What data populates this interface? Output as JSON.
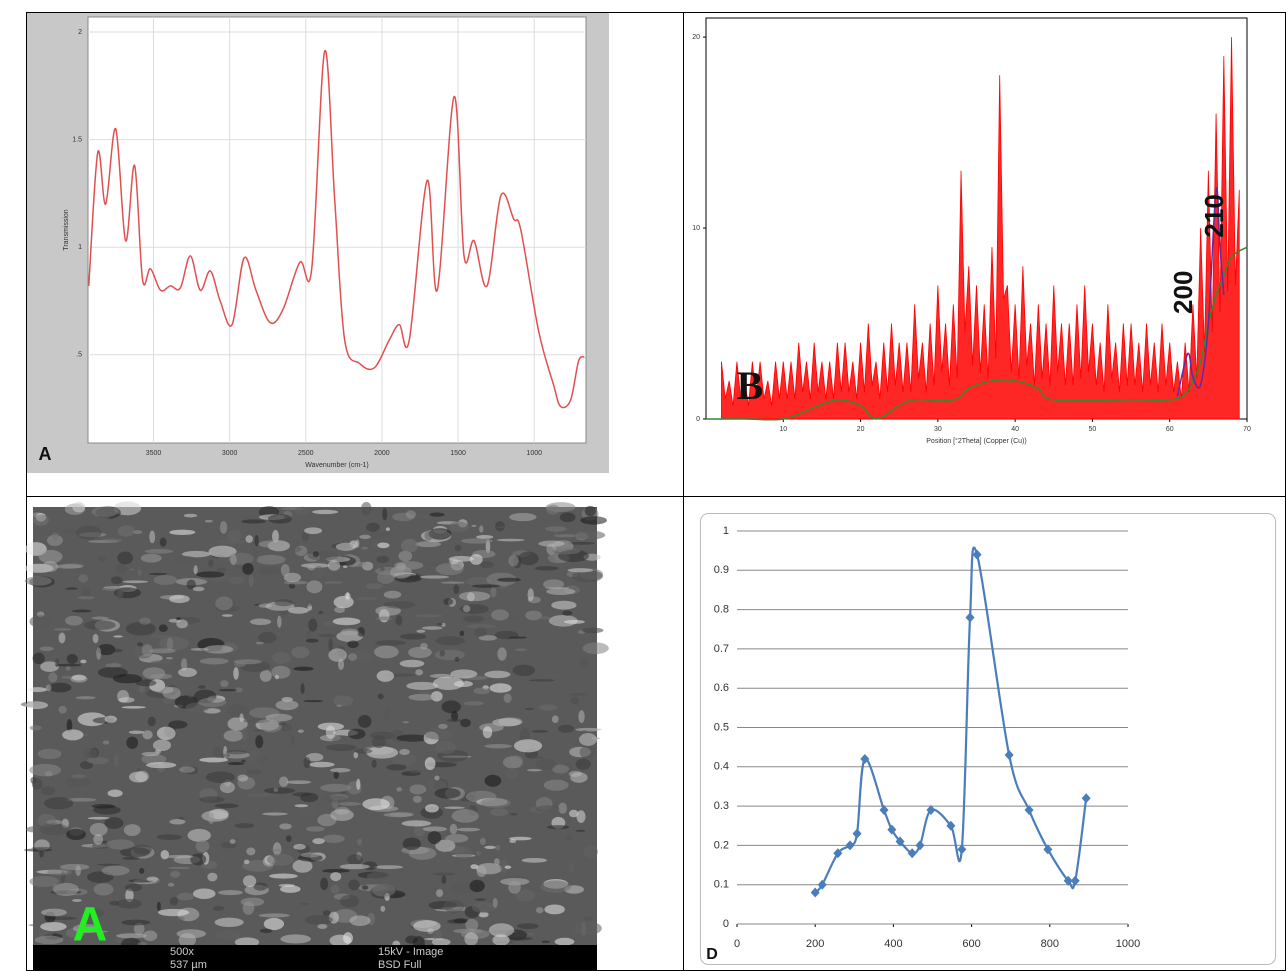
{
  "chart_data": [
    {
      "type": "line",
      "panel_label": "A",
      "x_label": "Wavenumber (cm-1)",
      "y_label": "Transmission",
      "xlim": [
        3930,
        660
      ],
      "ylim": [
        0.09,
        2.07
      ],
      "xticks": [
        3500,
        3000,
        2500,
        2000,
        1500,
        1000
      ],
      "yticks": [
        {
          "value": 0.5,
          "label": ".5"
        },
        1,
        1.5,
        2
      ],
      "grid": true,
      "series": [
        {
          "color": "#e05050",
          "x": [
            3925,
            3866,
            3814,
            3748,
            3683,
            3624,
            3572,
            3520,
            3454,
            3389,
            3324,
            3258,
            3193,
            3127,
            3062,
            2984,
            2905,
            2827,
            2735,
            2650,
            2539,
            2461,
            2376,
            2310,
            2245,
            2147,
            2049,
            1951,
            1886,
            1820,
            1703,
            1637,
            1526,
            1461,
            1395,
            1310,
            1219,
            1134,
            1088,
            971,
            873,
            827,
            761,
            709,
            670
          ],
          "values": [
            0.82,
            1.44,
            1.2,
            1.55,
            1.03,
            1.38,
            0.85,
            0.9,
            0.8,
            0.82,
            0.81,
            0.96,
            0.8,
            0.89,
            0.75,
            0.64,
            0.95,
            0.8,
            0.65,
            0.71,
            0.93,
            0.9,
            1.91,
            1.22,
            0.57,
            0.46,
            0.44,
            0.57,
            0.64,
            0.57,
            1.31,
            0.8,
            1.7,
            0.96,
            1.03,
            0.82,
            1.24,
            1.13,
            1.08,
            0.61,
            0.36,
            0.26,
            0.29,
            0.47,
            0.49
          ]
        }
      ]
    },
    {
      "type": "xrd",
      "panel_label": "B",
      "x_label": "Position [°2Theta] (Copper (Cu))",
      "xlim": [
        0,
        70
      ],
      "ylim": [
        0,
        21
      ],
      "xticks": [
        10,
        20,
        30,
        40,
        50,
        60,
        70
      ],
      "yticks": [
        0,
        10,
        20
      ],
      "annotations": [
        {
          "text": "200",
          "x": 62,
          "y": 5.5
        },
        {
          "text": "210",
          "x": 66,
          "y": 9.5
        }
      ],
      "series": [
        {
          "color": "#ff0000",
          "x": [
            2,
            3,
            4,
            5,
            6,
            7,
            8,
            9,
            10,
            11,
            12,
            13,
            14,
            15,
            16,
            17,
            18,
            19,
            20,
            21,
            22,
            23,
            24,
            25,
            26,
            27,
            28,
            29,
            30,
            31,
            32,
            33,
            34,
            35,
            36,
            37,
            38,
            39,
            40,
            41,
            42,
            43,
            44,
            45,
            46,
            47,
            48,
            49,
            50,
            51,
            52,
            53,
            54,
            55,
            56,
            57,
            58,
            59,
            60,
            61,
            62,
            63,
            64,
            65,
            66,
            67,
            68,
            69
          ],
          "values": [
            3,
            2,
            3,
            2,
            3,
            3,
            2,
            3,
            3,
            3,
            4,
            3,
            4,
            3,
            3,
            4,
            4,
            3,
            4,
            5,
            3,
            4,
            5,
            4,
            4,
            6,
            4,
            5,
            7,
            5,
            6,
            13,
            8,
            7,
            6,
            9,
            18,
            7,
            6,
            8,
            5,
            6,
            5,
            7,
            5,
            5,
            6,
            7,
            5,
            4,
            6,
            4,
            5,
            5,
            4,
            5,
            4,
            5,
            4,
            3,
            4,
            6,
            10,
            13,
            16,
            19,
            20,
            12
          ]
        },
        {
          "color": "#2e8b2e",
          "x": [
            0,
            5,
            10,
            14,
            17,
            20,
            22,
            25,
            27,
            32,
            34,
            37,
            40,
            43,
            45,
            55,
            60,
            62,
            63,
            64,
            65,
            66,
            67,
            68,
            70
          ],
          "values": [
            0,
            0,
            0,
            0.6,
            1,
            0.7,
            0,
            0.7,
            1,
            1,
            1.6,
            2,
            2,
            1.6,
            1,
            1,
            1,
            1.3,
            2,
            3,
            5,
            6.5,
            7.5,
            8.5,
            9
          ]
        },
        {
          "color": "#5a2ea8",
          "x": [
            61,
            62,
            62.5,
            63,
            64,
            65,
            66,
            66.5,
            67
          ],
          "values": [
            1.2,
            3,
            3.4,
            2.2,
            1.8,
            5,
            12,
            9,
            6.5
          ]
        }
      ]
    },
    {
      "type": "scatter-line",
      "panel_label": "D",
      "xlim": [
        0,
        1000
      ],
      "ylim": [
        0,
        1
      ],
      "xticks": [
        0,
        200,
        400,
        600,
        800,
        1000
      ],
      "yticks": [
        0,
        0.1,
        0.2,
        0.3,
        0.4,
        0.5,
        0.6,
        0.7,
        0.8,
        0.9,
        1
      ],
      "grid": true,
      "series": [
        {
          "color": "#4a7ebb",
          "x": [
            200,
            218,
            258,
            289,
            307,
            327,
            376,
            396,
            417,
            448,
            468,
            496,
            547,
            575,
            596,
            614,
            696,
            747,
            795,
            847,
            865,
            893
          ],
          "values": [
            0.08,
            0.1,
            0.18,
            0.2,
            0.23,
            0.42,
            0.29,
            0.24,
            0.21,
            0.18,
            0.2,
            0.29,
            0.25,
            0.19,
            0.78,
            0.94,
            0.43,
            0.29,
            0.19,
            0.11,
            0.11,
            0.32
          ]
        }
      ]
    }
  ],
  "sem_image": {
    "label": "A",
    "magnification": "500x",
    "voltage": "15kV - Image",
    "field": "537 µm",
    "detector": "BSD Full"
  }
}
